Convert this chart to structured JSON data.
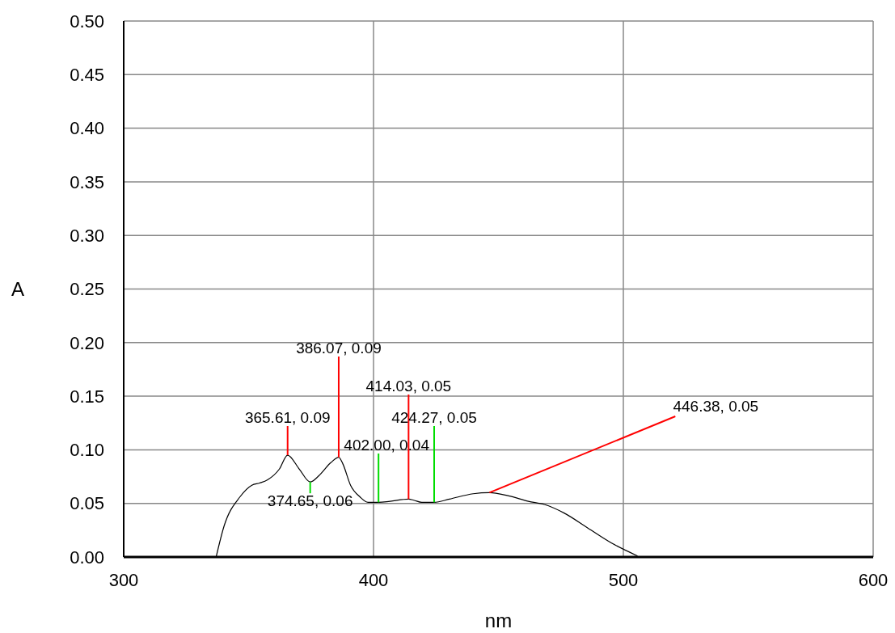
{
  "chart_data": {
    "type": "line",
    "xlabel": "nm",
    "ylabel": "A",
    "xlim": [
      300,
      600
    ],
    "xticks": [
      300,
      400,
      500,
      600
    ],
    "ylim": [
      0,
      0.5
    ],
    "yticks": [
      {
        "value": 0,
        "label": "0.00"
      },
      {
        "value": 0.05,
        "label": "0.05"
      },
      {
        "value": 0.1,
        "label": "0.10"
      },
      {
        "value": 0.15,
        "label": "0.15"
      },
      {
        "value": 0.2,
        "label": "0.20"
      },
      {
        "value": 0.25,
        "label": "0.25"
      },
      {
        "value": 0.3,
        "label": "0.30"
      },
      {
        "value": 0.35,
        "label": "0.35"
      },
      {
        "value": 0.4,
        "label": "0.40"
      },
      {
        "value": 0.45,
        "label": "0.45"
      },
      {
        "value": 0.5,
        "label": "0.50"
      }
    ],
    "grid": true,
    "marker": "none",
    "line_style": "solid",
    "series": [
      {
        "color": "#000000",
        "x": [
          337.0,
          340.2,
          346.5,
          351.3,
          354.4,
          357.6,
          362.3,
          365.61,
          370.3,
          374.65,
          378.2,
          382.9,
          386.07,
          387.7,
          390.8,
          394.6,
          397.8,
          402.0,
          406.6,
          414.03,
          416.1,
          419.3,
          424.27,
          430.4,
          439.9,
          446.38,
          454.1,
          462.0,
          468.4,
          476.3,
          485.8,
          495.3,
          505.7
        ],
        "values": [
          0.0,
          0.029,
          0.056,
          0.067,
          0.069,
          0.072,
          0.082,
          0.095,
          0.082,
          0.07,
          0.076,
          0.088,
          0.093,
          0.087,
          0.067,
          0.056,
          0.051,
          0.051,
          0.052,
          0.054,
          0.053,
          0.051,
          0.051,
          0.054,
          0.059,
          0.06,
          0.057,
          0.052,
          0.049,
          0.041,
          0.027,
          0.013,
          0.001
        ]
      }
    ],
    "annotations": [
      {
        "text": "365.61, 0.09",
        "x": 365.61,
        "y": 0.095
      },
      {
        "text": "374.65, 0.06",
        "x": 374.65,
        "y": 0.07
      },
      {
        "text": "386.07, 0.09",
        "x": 386.07,
        "y": 0.093
      },
      {
        "text": "402.00, 0.04",
        "x": 402.0,
        "y": 0.051
      },
      {
        "text": "414.03, 0.05",
        "x": 414.03,
        "y": 0.054
      },
      {
        "text": "424.27, 0.05",
        "x": 424.27,
        "y": 0.051
      },
      {
        "text": "446.38, 0.05",
        "x": 446.38,
        "y": 0.06
      }
    ]
  }
}
